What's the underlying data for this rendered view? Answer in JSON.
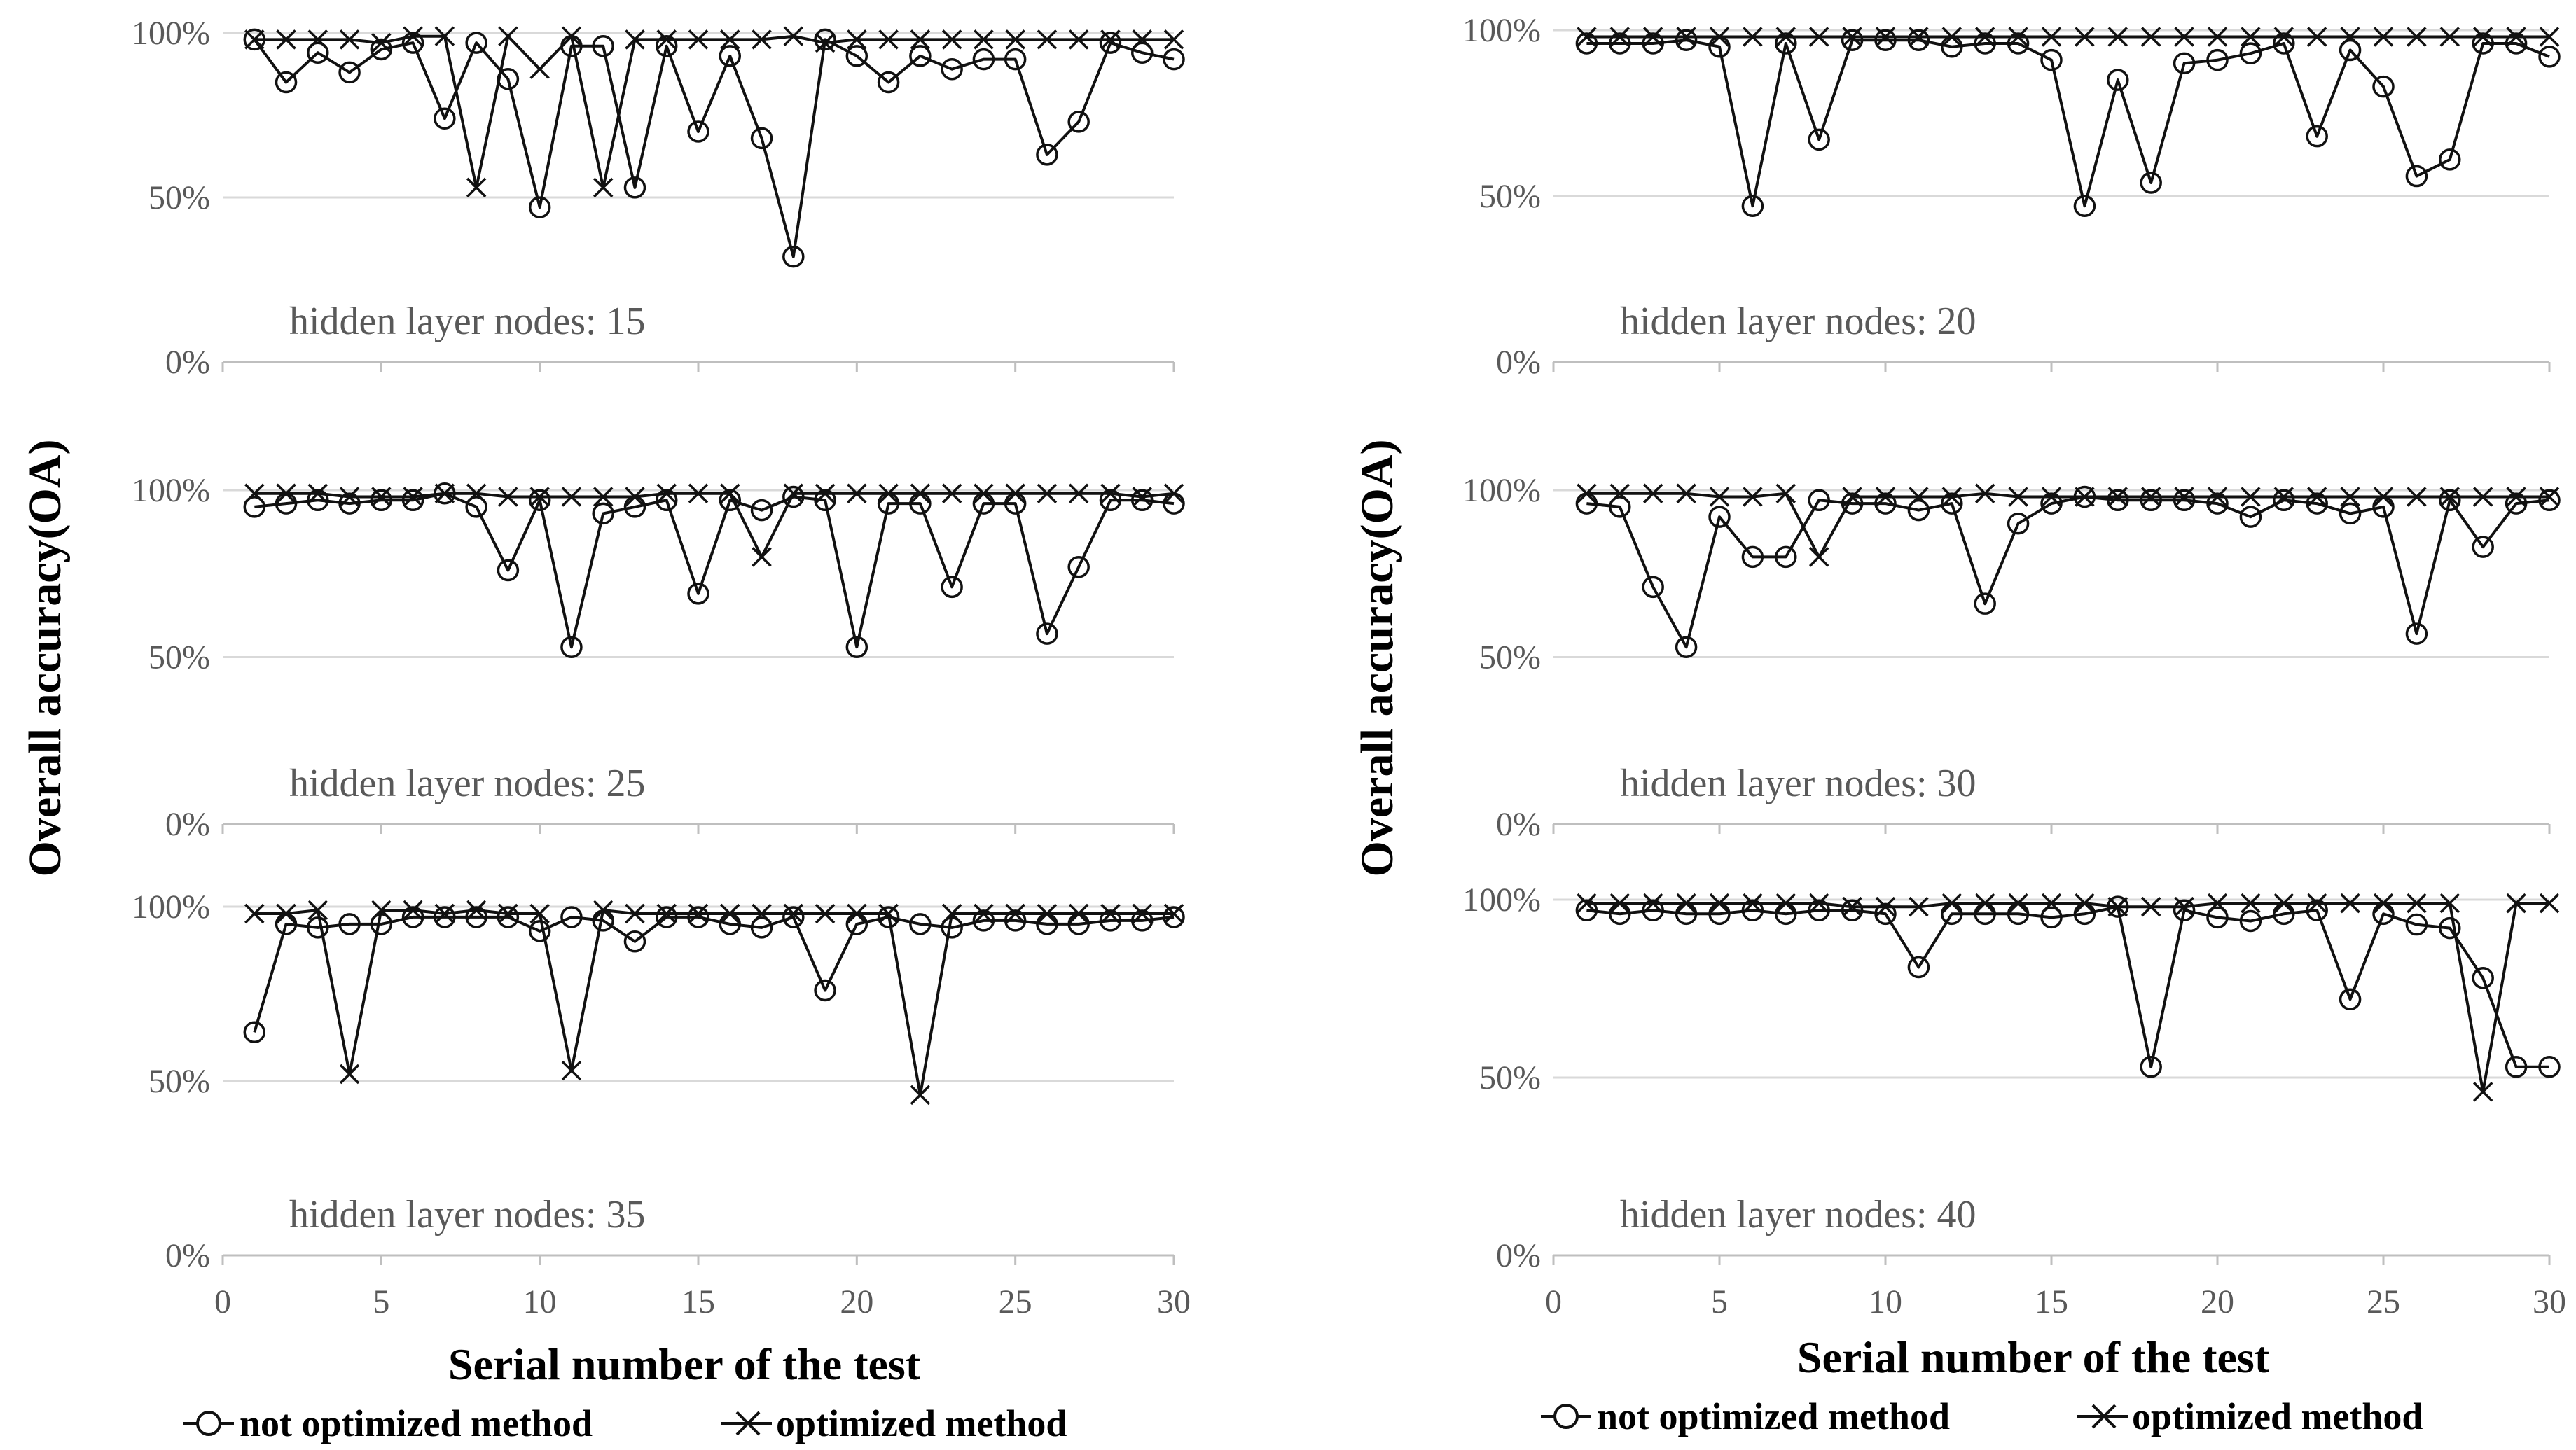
{
  "chart_data": {
    "type": "line",
    "x_label": "Serial number of the test",
    "y_label": "Overall  accuracy(OA)",
    "x_ticks": [
      "0",
      "5",
      "10",
      "15",
      "20",
      "25",
      "30"
    ],
    "y_ticks": [
      "0%",
      "50%",
      "100%"
    ],
    "xlim": [
      0,
      30
    ],
    "ylim": [
      0,
      100
    ],
    "legend": [
      {
        "name": "not optimized method",
        "marker": "circle"
      },
      {
        "name": "optimized method",
        "marker": "cross"
      }
    ],
    "x": [
      1,
      2,
      3,
      4,
      5,
      6,
      7,
      8,
      9,
      10,
      11,
      12,
      13,
      14,
      15,
      16,
      17,
      18,
      19,
      20,
      21,
      22,
      23,
      24,
      25,
      26,
      27,
      28,
      29,
      30
    ],
    "panels": [
      {
        "annotation": "hidden layer nodes: 15",
        "series": [
          {
            "name": "not optimized method",
            "values": [
              98,
              85,
              94,
              88,
              95,
              97,
              74,
              97,
              86,
              47,
              96,
              96,
              53,
              96,
              70,
              93,
              68,
              32,
              98,
              93,
              85,
              93,
              89,
              92,
              92,
              63,
              73,
              97,
              94,
              92
            ]
          },
          {
            "name": "optimized method",
            "values": [
              98,
              98,
              98,
              98,
              97,
              99,
              99,
              53,
              99,
              89,
              99,
              53,
              98,
              98,
              98,
              98,
              98,
              99,
              97,
              98,
              98,
              98,
              98,
              98,
              98,
              98,
              98,
              98,
              98,
              98
            ]
          }
        ]
      },
      {
        "annotation": "hidden layer nodes: 20",
        "series": [
          {
            "name": "not optimized method",
            "values": [
              96,
              96,
              96,
              97,
              95,
              47,
              96,
              67,
              97,
              97,
              97,
              95,
              96,
              96,
              91,
              47,
              85,
              54,
              90,
              91,
              93,
              96,
              68,
              94,
              83,
              56,
              61,
              96,
              96,
              92
            ]
          },
          {
            "name": "optimized method",
            "values": [
              98,
              98,
              98,
              98,
              98,
              98,
              98,
              98,
              98,
              98,
              98,
              98,
              98,
              98,
              98,
              98,
              98,
              98,
              98,
              98,
              98,
              98,
              98,
              98,
              98,
              98,
              98,
              98,
              98,
              98
            ]
          }
        ]
      },
      {
        "annotation": "hidden layer nodes: 25",
        "series": [
          {
            "name": "not optimized method",
            "values": [
              95,
              96,
              97,
              96,
              97,
              97,
              99,
              95,
              76,
              97,
              53,
              93,
              95,
              97,
              69,
              97,
              94,
              98,
              97,
              53,
              96,
              96,
              71,
              96,
              96,
              57,
              77,
              97,
              97,
              96
            ]
          },
          {
            "name": "optimized method",
            "values": [
              99,
              99,
              99,
              98,
              98,
              98,
              99,
              99,
              98,
              98,
              98,
              98,
              98,
              99,
              99,
              99,
              80,
              99,
              99,
              99,
              99,
              99,
              99,
              99,
              99,
              99,
              99,
              99,
              98,
              99
            ]
          }
        ]
      },
      {
        "annotation": "hidden layer nodes: 30",
        "series": [
          {
            "name": "not optimized method",
            "values": [
              96,
              95,
              71,
              53,
              92,
              80,
              80,
              97,
              96,
              96,
              94,
              96,
              66,
              90,
              96,
              98,
              97,
              97,
              97,
              96,
              92,
              97,
              96,
              93,
              95,
              57,
              97,
              83,
              96,
              97
            ]
          },
          {
            "name": "optimized method",
            "values": [
              99,
              99,
              99,
              99,
              98,
              98,
              99,
              80,
              98,
              98,
              98,
              98,
              99,
              98,
              98,
              98,
              98,
              98,
              98,
              98,
              98,
              98,
              98,
              98,
              98,
              98,
              98,
              98,
              98,
              98
            ]
          }
        ]
      },
      {
        "annotation": "hidden layer nodes: 35",
        "series": [
          {
            "name": "not optimized method",
            "values": [
              64,
              95,
              94,
              95,
              95,
              97,
              97,
              97,
              97,
              93,
              97,
              96,
              90,
              97,
              97,
              95,
              94,
              97,
              76,
              95,
              97,
              95,
              94,
              96,
              96,
              95,
              95,
              96,
              96,
              97
            ]
          },
          {
            "name": "optimized method",
            "values": [
              98,
              98,
              99,
              52,
              99,
              99,
              98,
              99,
              98,
              98,
              53,
              99,
              98,
              98,
              98,
              98,
              98,
              98,
              98,
              98,
              98,
              46,
              98,
              98,
              98,
              98,
              98,
              98,
              98,
              98
            ]
          }
        ]
      },
      {
        "annotation": "hidden layer nodes: 40",
        "series": [
          {
            "name": "not optimized method",
            "values": [
              97,
              96,
              97,
              96,
              96,
              97,
              96,
              97,
              97,
              96,
              81,
              96,
              96,
              96,
              95,
              96,
              98,
              53,
              97,
              95,
              94,
              96,
              97,
              72,
              96,
              93,
              92,
              78,
              53,
              53
            ]
          },
          {
            "name": "optimized method",
            "values": [
              99,
              99,
              99,
              99,
              99,
              99,
              99,
              99,
              98,
              98,
              98,
              99,
              99,
              99,
              99,
              99,
              98,
              98,
              98,
              99,
              99,
              99,
              99,
              99,
              99,
              99,
              99,
              46,
              99,
              99
            ]
          }
        ]
      }
    ]
  }
}
